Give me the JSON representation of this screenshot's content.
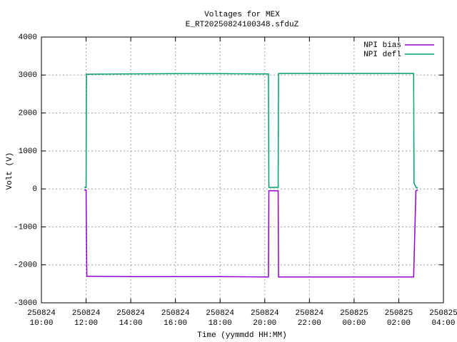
{
  "chart_data": {
    "type": "line",
    "title": "Voltages for MEX",
    "subtitle": "E_RT20250824100348.sfduZ",
    "x_label": "Time (yymmdd HH:MM)",
    "y_label": "Volt (V)",
    "xlim": [
      "2025-08-24T10:00",
      "2025-08-25T04:00"
    ],
    "xticks": [
      {
        "value": "2025-08-24T10:00",
        "label": [
          "250824",
          "10:00"
        ]
      },
      {
        "value": "2025-08-24T12:00",
        "label": [
          "250824",
          "12:00"
        ]
      },
      {
        "value": "2025-08-24T14:00",
        "label": [
          "250824",
          "14:00"
        ]
      },
      {
        "value": "2025-08-24T16:00",
        "label": [
          "250824",
          "16:00"
        ]
      },
      {
        "value": "2025-08-24T18:00",
        "label": [
          "250824",
          "18:00"
        ]
      },
      {
        "value": "2025-08-24T20:00",
        "label": [
          "250824",
          "20:00"
        ]
      },
      {
        "value": "2025-08-24T22:00",
        "label": [
          "250824",
          "22:00"
        ]
      },
      {
        "value": "2025-08-25T00:00",
        "label": [
          "250825",
          "00:00"
        ]
      },
      {
        "value": "2025-08-25T02:00",
        "label": [
          "250825",
          "02:00"
        ]
      },
      {
        "value": "2025-08-25T04:00",
        "label": [
          "250825",
          "04:00"
        ]
      }
    ],
    "ylim": [
      -3000,
      4000
    ],
    "yticks": [
      -3000,
      -2000,
      -1000,
      0,
      1000,
      2000,
      3000,
      4000
    ],
    "grid": true,
    "legend": "top right",
    "series": [
      {
        "name": "NPI bias",
        "color": "#9400d3",
        "x": [
          "2025-08-24T11:55",
          "2025-08-24T12:00",
          "2025-08-24T12:02",
          "2025-08-24T14:00",
          "2025-08-24T18:00",
          "2025-08-24T20:10",
          "2025-08-24T20:11",
          "2025-08-24T20:36",
          "2025-08-24T20:37",
          "2025-08-25T00:00",
          "2025-08-25T02:40",
          "2025-08-25T02:46",
          "2025-08-25T02:51"
        ],
        "values": [
          -30,
          -30,
          -2300,
          -2310,
          -2310,
          -2320,
          -50,
          -50,
          -2320,
          -2320,
          -2320,
          -50,
          -30
        ]
      },
      {
        "name": "NPI defl",
        "color": "#009e73",
        "x": [
          "2025-08-24T11:55",
          "2025-08-24T12:00",
          "2025-08-24T12:01",
          "2025-08-24T14:00",
          "2025-08-24T16:00",
          "2025-08-24T18:00",
          "2025-08-24T19:40",
          "2025-08-24T20:10",
          "2025-08-24T20:11",
          "2025-08-24T20:36",
          "2025-08-24T20:37",
          "2025-08-24T22:00",
          "2025-08-25T00:00",
          "2025-08-25T02:40",
          "2025-08-25T02:41",
          "2025-08-25T02:47",
          "2025-08-25T02:51"
        ],
        "values": [
          40,
          40,
          3020,
          3030,
          3035,
          3035,
          3030,
          3030,
          40,
          40,
          3040,
          3040,
          3040,
          3040,
          150,
          30,
          30
        ]
      }
    ]
  }
}
